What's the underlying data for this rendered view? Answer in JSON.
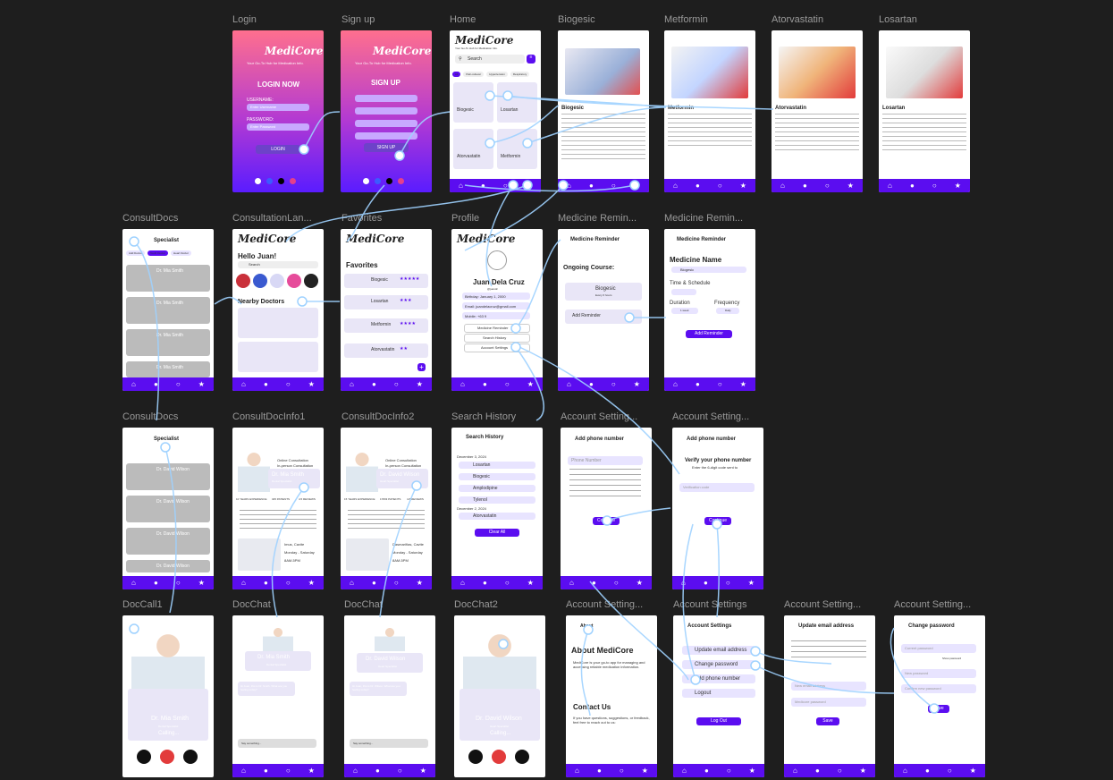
{
  "labels": {
    "login": "Login",
    "signup": "Sign up",
    "home": "Home",
    "biogesic": "Biogesic",
    "metformin": "Metformin",
    "atorvastatin": "Atorvastatin",
    "losartan": "Losartan",
    "consultdocs": "ConsultDocs",
    "consultlanding": "ConsultationLan...",
    "favorites": "Favorites",
    "profile": "Profile",
    "medrem1": "Medicine Remin...",
    "medrem2": "Medicine Remin...",
    "consultdocs2": "ConsultDocs",
    "docinfo1": "ConsultDocInfo1",
    "docinfo2": "ConsultDocInfo2",
    "searchhistory": "Search History",
    "acct1": "Account Setting...",
    "acct2": "Account Setting...",
    "doccall1": "DocCall1",
    "docchat1": "DocChat",
    "docchat2": "DocChat",
    "docchat3": "DocChat2",
    "acct3": "Account Setting...",
    "acct4": "Account Settings",
    "acct5": "Account Setting...",
    "acct6": "Account Setting..."
  },
  "brand": {
    "name": "MediCore",
    "tagline": "Your Go-To Hub for Medication Info."
  },
  "login": {
    "title": "LOGIN NOW",
    "username": "USERNAME:",
    "username_ph": "Enter Username",
    "password": "PASSWORD:",
    "password_ph": "Enter Password",
    "button": "LOGIN"
  },
  "signup": {
    "title": "SIGN UP",
    "button": "SIGN UP"
  },
  "home": {
    "search": "Search",
    "tabs": [
      "All",
      "Pain-reliever",
      "Hypertension",
      "Respiratory"
    ],
    "cards": [
      "Biogesic",
      "Losartan",
      "Atorvastatin",
      "Metformin"
    ]
  },
  "meds": {
    "biogesic": {
      "name": "Biogesic"
    },
    "metformin": {
      "name": "Metformin"
    },
    "atorvastatin": {
      "name": "Atorvastatin"
    },
    "losartan": {
      "name": "Losartan"
    }
  },
  "consultdocs": {
    "title": "Specialist",
    "doctor": "Dr. Mia Smith",
    "doctor2": "Dr. David Wilson",
    "chips": [
      "Add Doctor",
      "Tooth Doctor",
      "Heart Doctor"
    ]
  },
  "landing": {
    "hello": "Hello Juan!",
    "search": "Search",
    "nearby": "Nearby Doctors"
  },
  "favorites": {
    "title": "Favorites",
    "items": [
      "Biogesic",
      "Losartan",
      "Metformin",
      "Atorvastatin"
    ]
  },
  "profile": {
    "name": "Juan Dela Cruz",
    "handle": "@juandc",
    "birthday": "Birthday: January 1, 2000",
    "email": "Email: juandelacruz@gmail.com",
    "mobile": "Mobile: +63 9",
    "links": [
      "Medicine Reminder",
      "Search History",
      "Account Settings"
    ]
  },
  "reminder": {
    "title": "Medicine Reminder",
    "ongoing": "Ongoing Course:",
    "item": "Biogesic",
    "freq": "Every 6 hours",
    "add": "Add Reminder"
  },
  "reminder2": {
    "title": "Medicine Reminder",
    "name": "Medicine Name",
    "value": "Biogesic",
    "schedule": "Time & Schedule",
    "duration": "Duration",
    "frequency": "Frequency",
    "dur_val": "1 week",
    "freq_val": "Daily",
    "button": "Add Reminder"
  },
  "docinfo1": {
    "name": "Dr. Mia Smith",
    "role": "Dental Specialist",
    "stats": [
      "10 YEARS EXPERIENCE",
      "345 PATIENTS",
      "4.5 REVIEWS"
    ],
    "addr": "Imus, Cavite",
    "days": "Monday - Saturday",
    "hours": "8AM-5PM",
    "mode1": "Online Consultation",
    "mode2": "In-person Consultation"
  },
  "docinfo2": {
    "name": "Dr. David Wilson",
    "role": "Heart Specialist",
    "stats": [
      "15 YEARS EXPERIENCE",
      "17833 PATIENTS",
      "4.8 REVIEWS"
    ],
    "addr": "Dasmariñas, Cavite",
    "days": "Monday - Saturday",
    "hours": "8AM-5PM"
  },
  "history": {
    "title": "Search History",
    "date1": "December 3, 2024",
    "date2": "December 2, 2024",
    "items": [
      "Losartan",
      "Biogesic",
      "Amplodipine",
      "Tylenol",
      "Atorvastatin"
    ],
    "clear": "Clear All"
  },
  "phone1": {
    "title": "Add phone number",
    "placeholder": "Phone Number",
    "button": "Continue"
  },
  "phone2": {
    "title": "Add phone number",
    "heading": "Verify your phone number",
    "sub": "Enter the 6-digit code sent to",
    "code": "Verification code",
    "button": "Continue"
  },
  "call1": {
    "name": "Dr. Mia Smith",
    "role": "Dental Specialist",
    "status": "Calling..."
  },
  "chat1": {
    "name": "Dr. Mia Smith",
    "role": "Dental Specialist",
    "msg": "Hi Juan, this is Dr. Smith. What are you feeling today?",
    "input": "Say something..."
  },
  "chat2": {
    "name": "Dr. David Wilson",
    "role": "Heart Specialist",
    "msg": "Hi Juan, this is Dr. Wilson. What are you feeling today?",
    "input": "Say something..."
  },
  "call2": {
    "name": "Dr. David Wilson",
    "role": "Heart Specialist",
    "status": "Calling..."
  },
  "about": {
    "back": "About",
    "title": "About MediCore",
    "body": "MediCore is your go-to app for managing and accessing reliable medication information.",
    "contact": "Contact Us",
    "contact_body": "If you have questions, suggestions, or feedback, feel free to reach out to us:"
  },
  "acct4": {
    "title": "Account Settings",
    "items": [
      "Update email address",
      "Change password",
      "Add phone number",
      "Logout"
    ],
    "logout": "Log Out"
  },
  "acct5": {
    "title": "Update email address",
    "email_ph": "New email address",
    "pass_ph": "Medicore password",
    "button": "Save"
  },
  "acct6": {
    "title": "Change password",
    "current": "Current password",
    "show": "Show password",
    "new": "New password",
    "confirm": "Confirm new password",
    "button": "Save"
  },
  "colors": {
    "accent": "#5b0df0",
    "canvas": "#1e1e1e",
    "link": "#9fd2ff"
  }
}
